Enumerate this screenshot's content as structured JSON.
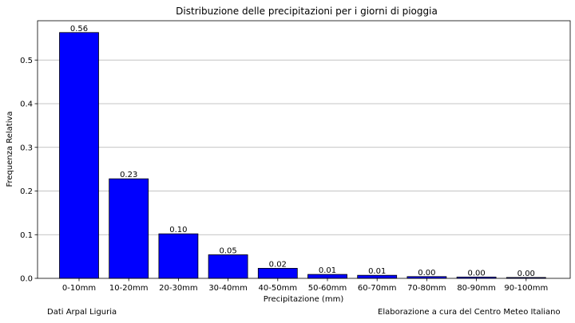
{
  "chart_data": {
    "type": "bar",
    "title": "Distribuzione delle precipitazioni per i giorni di pioggia",
    "xlabel": "Precipitazione (mm)",
    "ylabel": "Frequenza Relativa",
    "categories": [
      "0-10mm",
      "10-20mm",
      "20-30mm",
      "30-40mm",
      "40-50mm",
      "50-60mm",
      "60-70mm",
      "70-80mm",
      "80-90mm",
      "90-100mm"
    ],
    "values": [
      0.563,
      0.228,
      0.102,
      0.054,
      0.023,
      0.009,
      0.007,
      0.004,
      0.003,
      0.002
    ],
    "data_labels": [
      "0.56",
      "0.23",
      "0.10",
      "0.05",
      "0.02",
      "0.01",
      "0.01",
      "0.00",
      "0.00",
      "0.00"
    ],
    "yticks": [
      "0.0",
      "0.1",
      "0.2",
      "0.3",
      "0.4",
      "0.5"
    ],
    "ylim": [
      0,
      0.59
    ],
    "grid": "horizontal",
    "bar_color": "#0000ff",
    "bar_edge_color": "#000000"
  },
  "footer": {
    "source": "Dati Arpal Liguria",
    "credit": "Elaborazione a cura del Centro Meteo Italiano"
  }
}
